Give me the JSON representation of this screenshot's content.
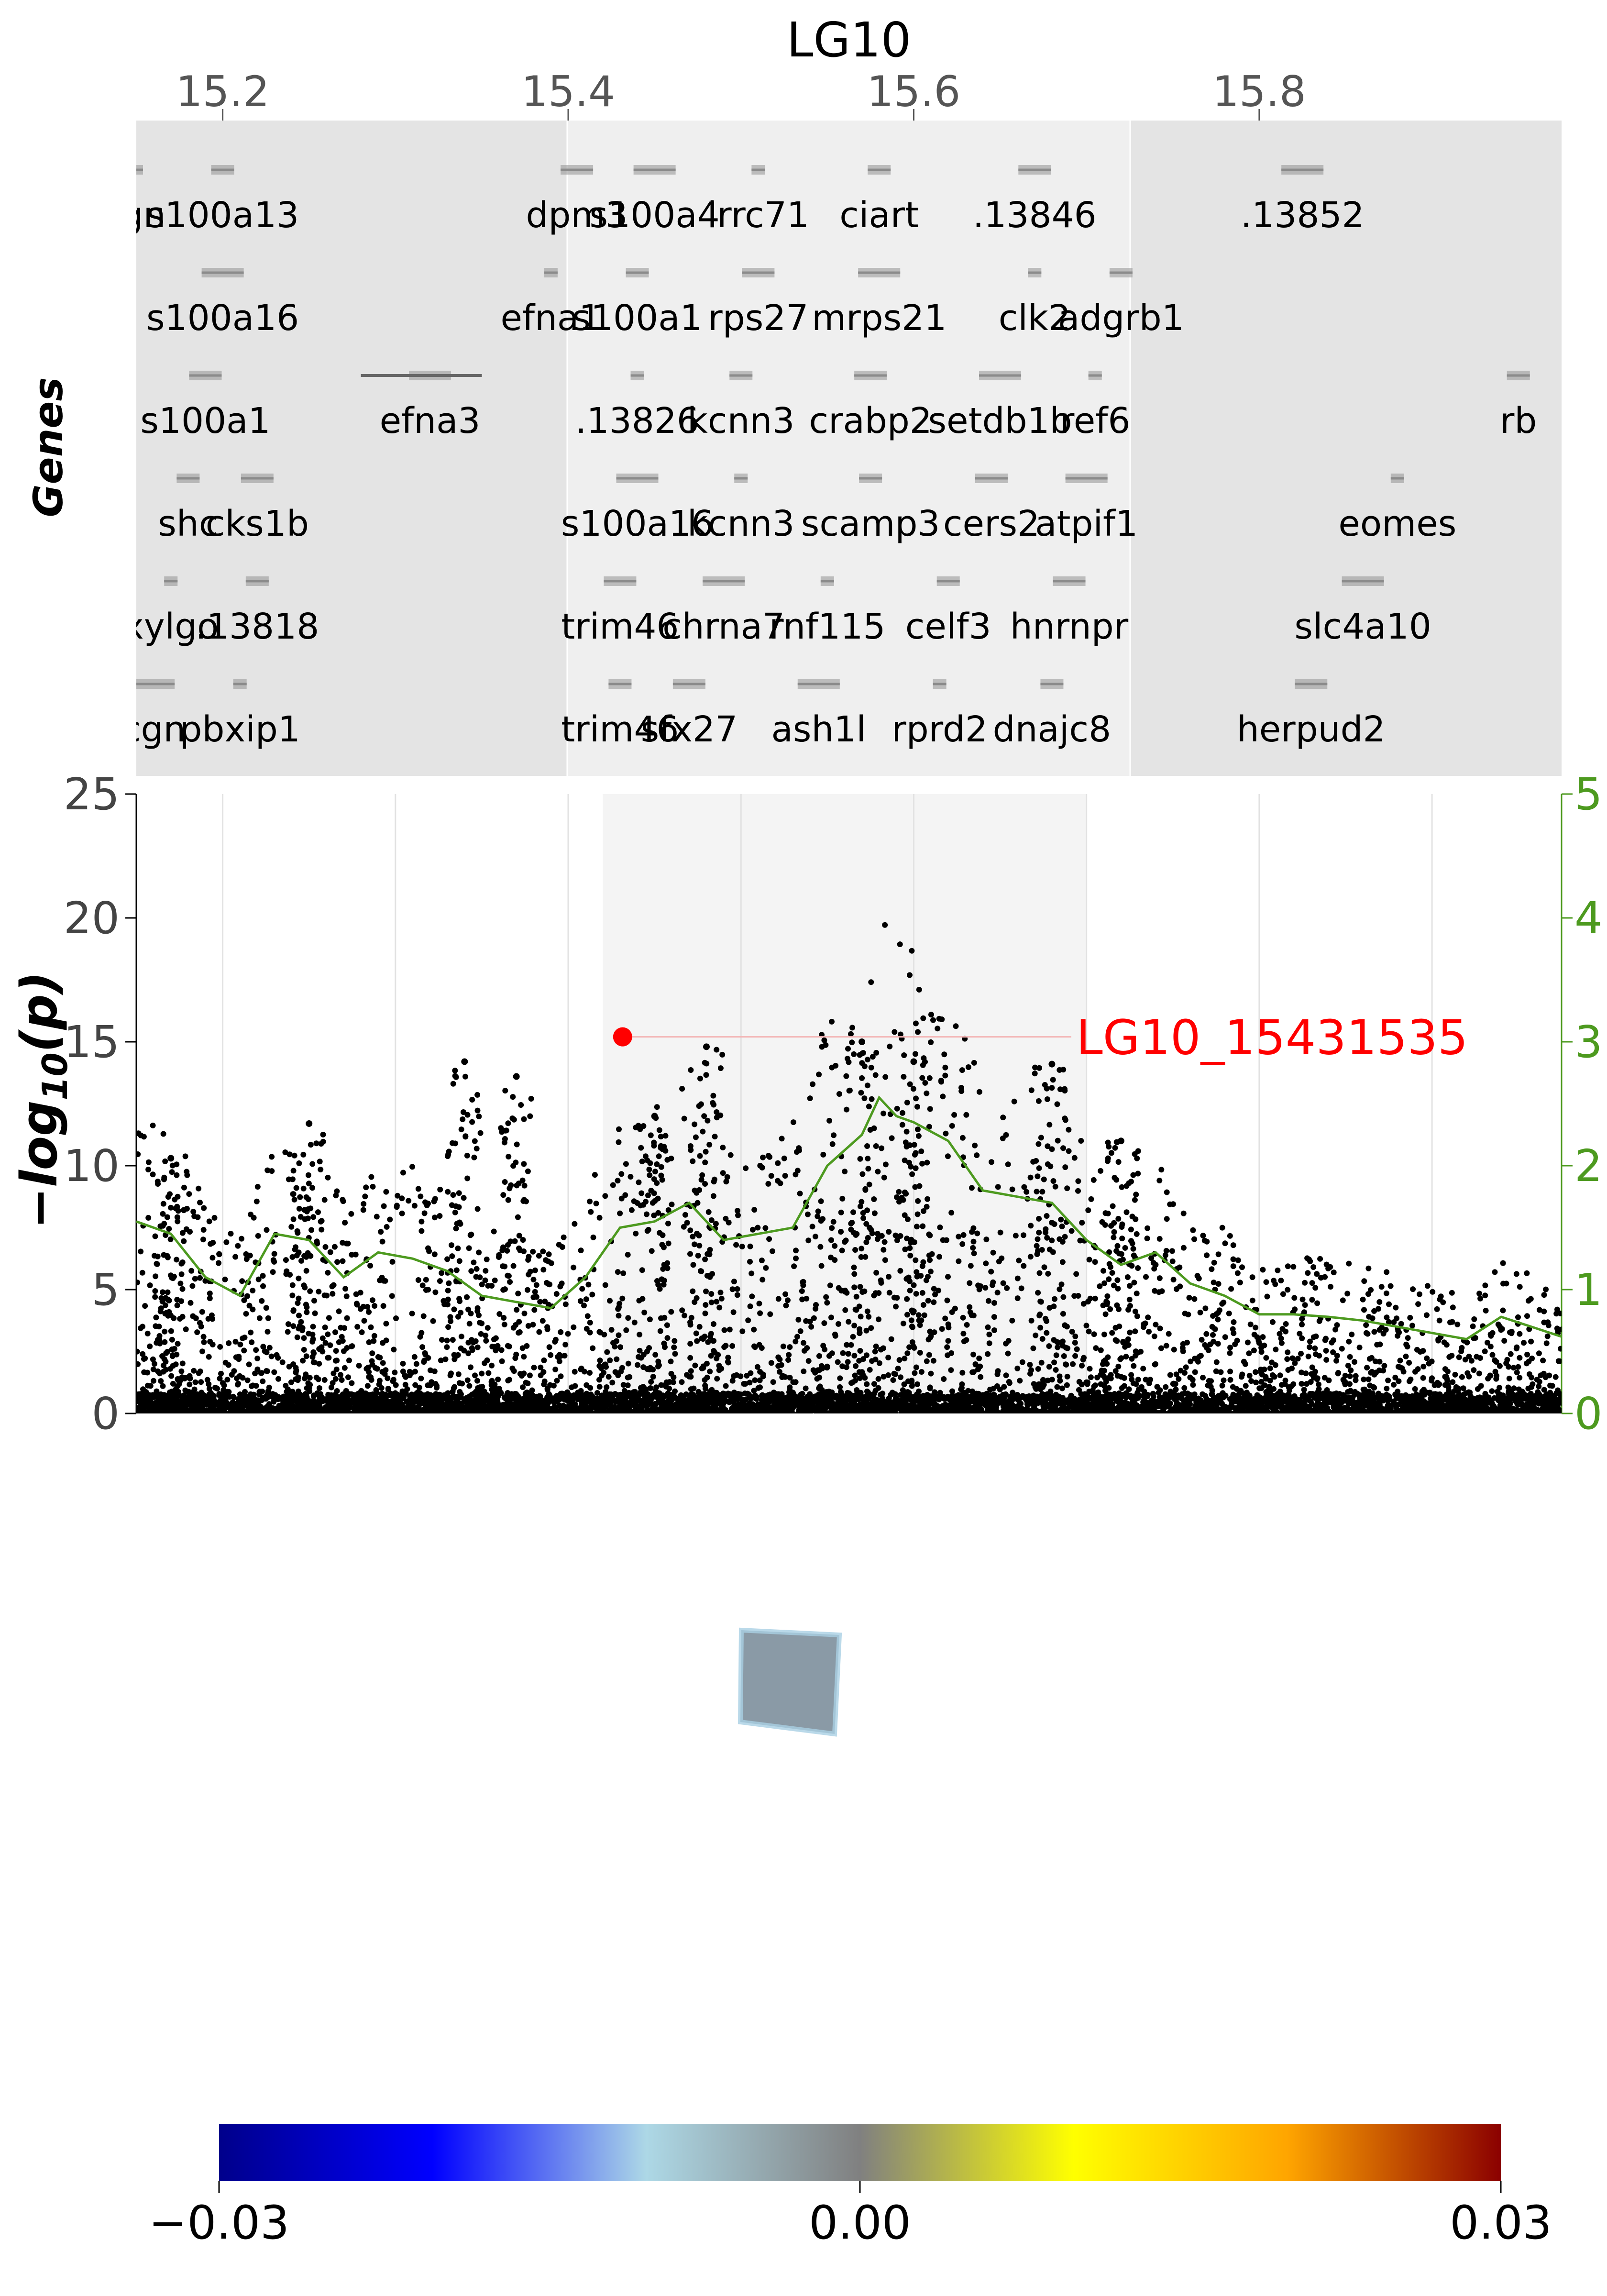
{
  "chromosome_title": "LG10",
  "genes_label": "Genes",
  "lead_snp_label": "LG10_15431535",
  "colors": {
    "panel_gray_dark": "#e4e4e4",
    "panel_gray_light": "#efefef",
    "highlight_band": "#f4f4f4",
    "lead_snp": "#ff0000",
    "smooth_line": "#4d9a1f",
    "points": "#000000",
    "gene_marks": "#8c8c8c"
  },
  "chart_data": [
    {
      "type": "gene_track",
      "x_range": [
        15.15,
        15.975
      ],
      "x_ticks": [
        {
          "value": 15.2,
          "label": "15.2"
        },
        {
          "value": 15.4,
          "label": "15.4"
        },
        {
          "value": 15.6,
          "label": "15.6"
        },
        {
          "value": 15.8,
          "label": "15.8"
        }
      ],
      "gene_rows": [
        [
          {
            "x": 15.15,
            "name": "rgn"
          },
          {
            "x": 15.2,
            "name": "s100a13"
          },
          {
            "x": 15.405,
            "name": "dpm3"
          },
          {
            "x": 15.45,
            "name": "s100a4"
          },
          {
            "x": 15.51,
            "name": "lrrc71"
          },
          {
            "x": 15.58,
            "name": "ciart"
          },
          {
            "x": 15.67,
            "name": ".13846"
          },
          {
            "x": 15.825,
            "name": ".13852"
          }
        ],
        [
          {
            "x": 15.2,
            "name": "s100a16"
          },
          {
            "x": 15.39,
            "name": "efna1"
          },
          {
            "x": 15.44,
            "name": "s100a1"
          },
          {
            "x": 15.51,
            "name": "rps27"
          },
          {
            "x": 15.58,
            "name": "mrps21"
          },
          {
            "x": 15.67,
            "name": "clk2"
          },
          {
            "x": 15.72,
            "name": "adgrb1"
          }
        ],
        [
          {
            "x": 15.19,
            "name": "s100a1"
          },
          {
            "x": 15.32,
            "name": "efna3"
          },
          {
            "x": 15.44,
            "name": ".13826"
          },
          {
            "x": 15.5,
            "name": "kcnn3"
          },
          {
            "x": 15.575,
            "name": "crabp2"
          },
          {
            "x": 15.65,
            "name": "setdb1b"
          },
          {
            "x": 15.705,
            "name": "ref6"
          },
          {
            "x": 15.95,
            "name": "rb"
          }
        ],
        [
          {
            "x": 15.18,
            "name": "shc"
          },
          {
            "x": 15.22,
            "name": "cks1b"
          },
          {
            "x": 15.44,
            "name": "s100a16"
          },
          {
            "x": 15.5,
            "name": "kcnn3"
          },
          {
            "x": 15.575,
            "name": "scamp3"
          },
          {
            "x": 15.645,
            "name": "cers2"
          },
          {
            "x": 15.7,
            "name": "atpif1"
          },
          {
            "x": 15.88,
            "name": "eomes"
          }
        ],
        [
          {
            "x": 15.17,
            "name": "xylgo"
          },
          {
            "x": 15.22,
            "name": ".13818"
          },
          {
            "x": 15.43,
            "name": "trim46"
          },
          {
            "x": 15.49,
            "name": "chrna7"
          },
          {
            "x": 15.55,
            "name": "rnf115"
          },
          {
            "x": 15.62,
            "name": "celf3"
          },
          {
            "x": 15.69,
            "name": "hnrnpr"
          },
          {
            "x": 15.86,
            "name": "slc4a10"
          }
        ],
        [
          {
            "x": 15.16,
            "name": "cgn"
          },
          {
            "x": 15.21,
            "name": "pbxip1"
          },
          {
            "x": 15.43,
            "name": "trim46"
          },
          {
            "x": 15.47,
            "name": "sfx27"
          },
          {
            "x": 15.545,
            "name": "ash1l"
          },
          {
            "x": 15.615,
            "name": "rprd2"
          },
          {
            "x": 15.68,
            "name": "dnajc8"
          },
          {
            "x": 15.83,
            "name": "herpud2"
          }
        ]
      ]
    },
    {
      "type": "scatter",
      "x_range": [
        15.15,
        15.975
      ],
      "ylabel": "−log10(p)",
      "ylim": [
        0,
        25
      ],
      "y_ticks": [
        0,
        5,
        10,
        15,
        20,
        25
      ],
      "y2_ticks": [
        0,
        1,
        2,
        3,
        4,
        5
      ],
      "y2_range": [
        0,
        5
      ],
      "highlight_region": [
        15.42,
        15.7
      ],
      "lead_snp": {
        "x": 15.4315,
        "y": 15.2,
        "label": "LG10_15431535"
      },
      "smoothed_line": {
        "x": [
          15.15,
          15.17,
          15.19,
          15.21,
          15.23,
          15.25,
          15.27,
          15.29,
          15.31,
          15.33,
          15.35,
          15.37,
          15.39,
          15.41,
          15.43,
          15.45,
          15.47,
          15.49,
          15.51,
          15.53,
          15.55,
          15.57,
          15.58,
          15.59,
          15.6,
          15.62,
          15.64,
          15.66,
          15.68,
          15.7,
          15.72,
          15.74,
          15.76,
          15.78,
          15.8,
          15.82,
          15.84,
          15.86,
          15.88,
          15.9,
          15.92,
          15.94,
          15.975
        ],
        "y": [
          1.55,
          1.45,
          1.1,
          0.95,
          1.45,
          1.4,
          1.1,
          1.3,
          1.25,
          1.15,
          0.95,
          0.9,
          0.85,
          1.1,
          1.5,
          1.55,
          1.7,
          1.4,
          1.45,
          1.5,
          2.0,
          2.25,
          2.55,
          2.4,
          2.35,
          2.2,
          1.8,
          1.75,
          1.7,
          1.4,
          1.2,
          1.3,
          1.05,
          0.95,
          0.8,
          0.8,
          0.78,
          0.75,
          0.7,
          0.65,
          0.6,
          0.78,
          0.62
        ]
      },
      "peaks": [
        {
          "x": 15.17,
          "y": 10.3
        },
        {
          "x": 15.25,
          "y": 11.7
        },
        {
          "x": 15.34,
          "y": 14.2
        },
        {
          "x": 15.37,
          "y": 13.6
        },
        {
          "x": 15.45,
          "y": 12.0
        },
        {
          "x": 15.48,
          "y": 14.8
        },
        {
          "x": 15.57,
          "y": 15.0
        },
        {
          "x": 15.6,
          "y": 14.2
        },
        {
          "x": 15.68,
          "y": 14.1
        },
        {
          "x": 15.72,
          "y": 11.0
        }
      ]
    },
    {
      "type": "colorbar",
      "min_label": "−0.03",
      "mid_label": "0.00",
      "max_label": "0.03",
      "stops": [
        "#00008b",
        "#0000ff",
        "#add8e6",
        "#808080",
        "#ffff00",
        "#ffa500",
        "#8b0000"
      ]
    }
  ]
}
